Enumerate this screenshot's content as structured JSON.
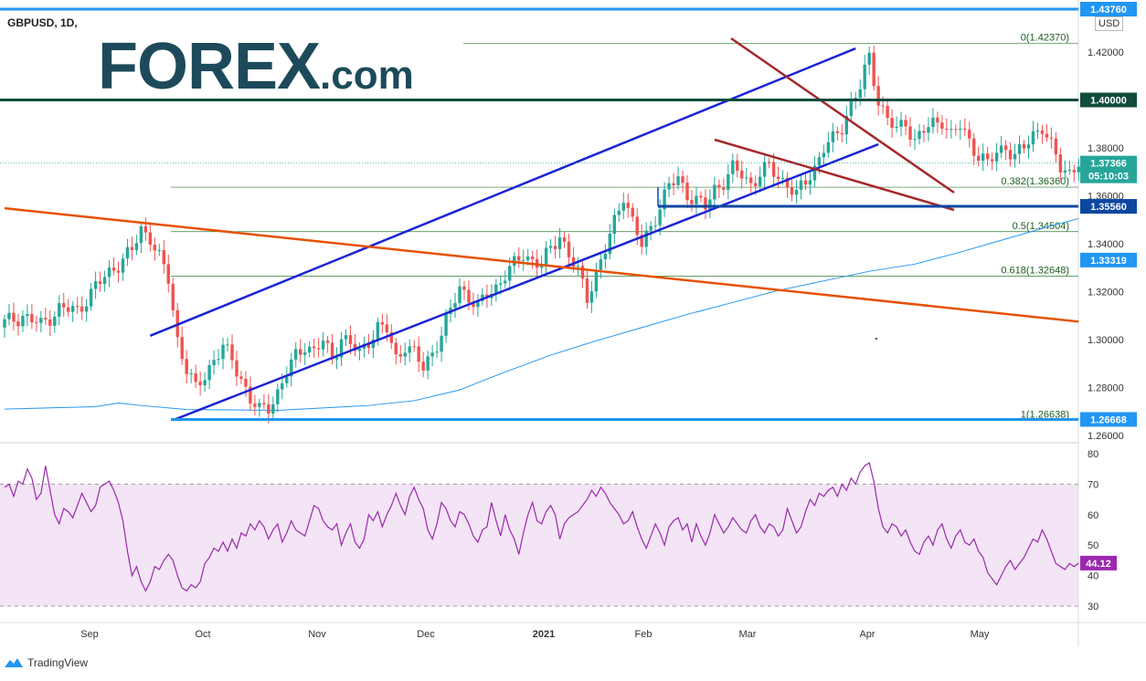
{
  "header": {
    "symbol": "GBPUSD, 1D,",
    "currency": "USD"
  },
  "logo": {
    "main": "FOREX",
    "suffix": ".com"
  },
  "footer": {
    "brand": "TradingView"
  },
  "colors": {
    "up": "#26a69a",
    "down": "#ef5350",
    "channel": "#1a24d6",
    "wedge": "#a5272a",
    "trend": "#e65100",
    "ma": "#2196f3",
    "rsi": "#9c27b0",
    "rsi_band": "#f3e5f5"
  },
  "chart_data": [
    {
      "type": "candlestick",
      "symbol": "GBPUSD",
      "timeframe": "1D",
      "ylim": [
        1.255,
        1.435
      ],
      "y_ticks": [
        "1.42000",
        "1.40000",
        "1.38000",
        "1.36000",
        "1.34000",
        "1.32000",
        "1.30000",
        "1.28000",
        "1.26000"
      ],
      "x_labels": [
        "Sep",
        "Oct",
        "Nov",
        "Dec",
        "2021",
        "Feb",
        "Mar",
        "Apr",
        "May"
      ],
      "price_tags": [
        "1.43760",
        "1.40000",
        "1.37366",
        "05:10:03",
        "1.35560",
        "1.33319",
        "1.26668"
      ],
      "fib_levels": [
        {
          "label": "0(1.42370)",
          "value": 1.4237
        },
        {
          "label": "0.382(1.36360)",
          "value": 1.3636
        },
        {
          "label": "0.5(1.34504)",
          "value": 1.34504
        },
        {
          "label": "0.618(1.32648)",
          "value": 1.32648
        },
        {
          "label": "1(1.26638)",
          "value": 1.26638
        }
      ],
      "horizontal_levels": [
        1.4,
        1.3556,
        1.26668
      ],
      "close_path": [
        [
          0,
          1.307
        ],
        [
          4,
          1.31
        ],
        [
          8,
          1.306
        ],
        [
          12,
          1.313
        ],
        [
          16,
          1.312
        ],
        [
          20,
          1.322
        ],
        [
          24,
          1.33
        ],
        [
          28,
          1.337
        ],
        [
          30,
          1.346
        ],
        [
          32,
          1.343
        ],
        [
          34,
          1.334
        ],
        [
          36,
          1.325
        ],
        [
          38,
          1.3
        ],
        [
          40,
          1.288
        ],
        [
          42,
          1.279
        ],
        [
          44,
          1.285
        ],
        [
          46,
          1.292
        ],
        [
          48,
          1.297
        ],
        [
          50,
          1.291
        ],
        [
          52,
          1.284
        ],
        [
          54,
          1.275
        ],
        [
          56,
          1.27
        ],
        [
          58,
          1.272
        ],
        [
          60,
          1.278
        ],
        [
          62,
          1.286
        ],
        [
          64,
          1.293
        ],
        [
          66,
          1.298
        ],
        [
          68,
          1.295
        ],
        [
          70,
          1.299
        ],
        [
          72,
          1.292
        ],
        [
          74,
          1.301
        ],
        [
          76,
          1.298
        ],
        [
          78,
          1.294
        ],
        [
          80,
          1.3
        ],
        [
          82,
          1.305
        ],
        [
          84,
          1.304
        ],
        [
          86,
          1.292
        ],
        [
          88,
          1.298
        ],
        [
          90,
          1.294
        ],
        [
          92,
          1.288
        ],
        [
          94,
          1.295
        ],
        [
          96,
          1.302
        ],
        [
          98,
          1.312
        ],
        [
          100,
          1.322
        ],
        [
          102,
          1.318
        ],
        [
          104,
          1.313
        ],
        [
          106,
          1.319
        ],
        [
          108,
          1.322
        ],
        [
          110,
          1.327
        ],
        [
          112,
          1.331
        ],
        [
          114,
          1.336
        ],
        [
          116,
          1.333
        ],
        [
          118,
          1.331
        ],
        [
          120,
          1.338
        ],
        [
          122,
          1.344
        ],
        [
          124,
          1.335
        ],
        [
          126,
          1.328
        ],
        [
          128,
          1.318
        ],
        [
          130,
          1.328
        ],
        [
          132,
          1.337
        ],
        [
          134,
          1.349
        ],
        [
          136,
          1.361
        ],
        [
          138,
          1.349
        ],
        [
          140,
          1.339
        ],
        [
          142,
          1.347
        ],
        [
          144,
          1.356
        ],
        [
          146,
          1.364
        ],
        [
          148,
          1.367
        ],
        [
          150,
          1.361
        ],
        [
          152,
          1.358
        ],
        [
          154,
          1.355
        ],
        [
          156,
          1.363
        ],
        [
          158,
          1.366
        ],
        [
          160,
          1.371
        ],
        [
          162,
          1.369
        ],
        [
          164,
          1.365
        ],
        [
          166,
          1.369
        ],
        [
          168,
          1.372
        ],
        [
          170,
          1.368
        ],
        [
          172,
          1.365
        ],
        [
          174,
          1.36
        ],
        [
          176,
          1.366
        ],
        [
          178,
          1.372
        ],
        [
          180,
          1.38
        ],
        [
          182,
          1.383
        ],
        [
          184,
          1.389
        ],
        [
          186,
          1.399
        ],
        [
          188,
          1.405
        ],
        [
          190,
          1.418
        ],
        [
          192,
          1.4
        ],
        [
          194,
          1.392
        ],
        [
          196,
          1.387
        ],
        [
          198,
          1.391
        ],
        [
          200,
          1.383
        ],
        [
          202,
          1.387
        ],
        [
          204,
          1.39
        ],
        [
          206,
          1.392
        ],
        [
          208,
          1.385
        ],
        [
          210,
          1.389
        ],
        [
          212,
          1.383
        ],
        [
          214,
          1.377
        ],
        [
          216,
          1.373
        ],
        [
          218,
          1.378
        ],
        [
          220,
          1.381
        ],
        [
          222,
          1.376
        ],
        [
          224,
          1.38
        ],
        [
          226,
          1.386
        ],
        [
          228,
          1.389
        ],
        [
          230,
          1.38
        ],
        [
          232,
          1.372
        ],
        [
          234,
          1.37
        ],
        [
          236,
          1.37366
        ]
      ],
      "series": [
        {
          "name": "Daily candles"
        },
        {
          "name": "MA",
          "values": [
            [
              0,
              1.271
            ],
            [
              20,
              1.272
            ],
            [
              25,
              1.2735
            ],
            [
              30,
              1.2725
            ],
            [
              40,
              1.2708
            ],
            [
              60,
              1.2705
            ],
            [
              80,
              1.2725
            ],
            [
              90,
              1.2745
            ],
            [
              100,
              1.279
            ],
            [
              110,
              1.2865
            ],
            [
              120,
              1.2935
            ],
            [
              130,
              1.2995
            ],
            [
              140,
              1.305
            ],
            [
              150,
              1.3105
            ],
            [
              160,
              1.3155
            ],
            [
              170,
              1.3205
            ],
            [
              180,
              1.3245
            ],
            [
              190,
              1.3285
            ],
            [
              200,
              1.3315
            ],
            [
              210,
              1.3365
            ],
            [
              220,
              1.342
            ],
            [
              230,
              1.3475
            ],
            [
              236,
              1.3505
            ]
          ]
        }
      ],
      "trendlines": [
        {
          "name": "channel-upper",
          "from": [
            1.3016,
            32
          ],
          "to": [
            1.4215,
            187
          ]
        },
        {
          "name": "channel-lower",
          "from": [
            1.26638,
            37
          ],
          "to": [
            1.3815,
            192
          ]
        },
        {
          "name": "orange-downtrend",
          "from": [
            1.3548,
            0
          ],
          "to": [
            1.3075,
            236
          ]
        }
      ]
    },
    {
      "type": "line",
      "name": "RSI",
      "ylim": [
        26,
        82
      ],
      "y_ticks": [
        "80",
        "70",
        "60",
        "50",
        "40",
        "30"
      ],
      "bands": [
        30,
        70
      ],
      "last_value": "44.12",
      "values": [
        69,
        70,
        66,
        71,
        70,
        75,
        72,
        65,
        67,
        76,
        68,
        60,
        57,
        62,
        61,
        59,
        63,
        67,
        64,
        61,
        63,
        69,
        70,
        71,
        68,
        64,
        58,
        48,
        40,
        43,
        38,
        35,
        38,
        43,
        42,
        45,
        47,
        45,
        40,
        36,
        35,
        37,
        36,
        38,
        44,
        46,
        49,
        48,
        51,
        48,
        52,
        49,
        54,
        53,
        57,
        55,
        58,
        56,
        52,
        55,
        57,
        51,
        54,
        58,
        55,
        54,
        53,
        58,
        63,
        62,
        58,
        56,
        55,
        57,
        50,
        54,
        57,
        51,
        49,
        52,
        60,
        58,
        61,
        56,
        60,
        63,
        67,
        63,
        60,
        66,
        69,
        65,
        62,
        55,
        52,
        57,
        64,
        62,
        58,
        56,
        61,
        60,
        57,
        53,
        51,
        55,
        56,
        64,
        58,
        53,
        60,
        55,
        52,
        47,
        54,
        60,
        64,
        58,
        57,
        61,
        63,
        60,
        52,
        57,
        59,
        60,
        61,
        63,
        65,
        68,
        66,
        69,
        67,
        64,
        62,
        60,
        57,
        58,
        61,
        56,
        52,
        49,
        53,
        57,
        54,
        50,
        56,
        58,
        59,
        55,
        57,
        51,
        57,
        53,
        50,
        54,
        60,
        57,
        54,
        56,
        59,
        57,
        55,
        54,
        58,
        60,
        56,
        54,
        57,
        56,
        53,
        55,
        62,
        58,
        54,
        56,
        61,
        65,
        63,
        67,
        66,
        68,
        69,
        66,
        70,
        68,
        72,
        70,
        74,
        76,
        77,
        71,
        62,
        56,
        54,
        57,
        56,
        53,
        55,
        51,
        48,
        47,
        51,
        53,
        50,
        55,
        57,
        52,
        49,
        53,
        55,
        51,
        50,
        52,
        48,
        46,
        41,
        39,
        37,
        40,
        43,
        45,
        42,
        44,
        46,
        49,
        52,
        51,
        55,
        52,
        48,
        44,
        43,
        42,
        44,
        43,
        44.12
      ]
    }
  ]
}
